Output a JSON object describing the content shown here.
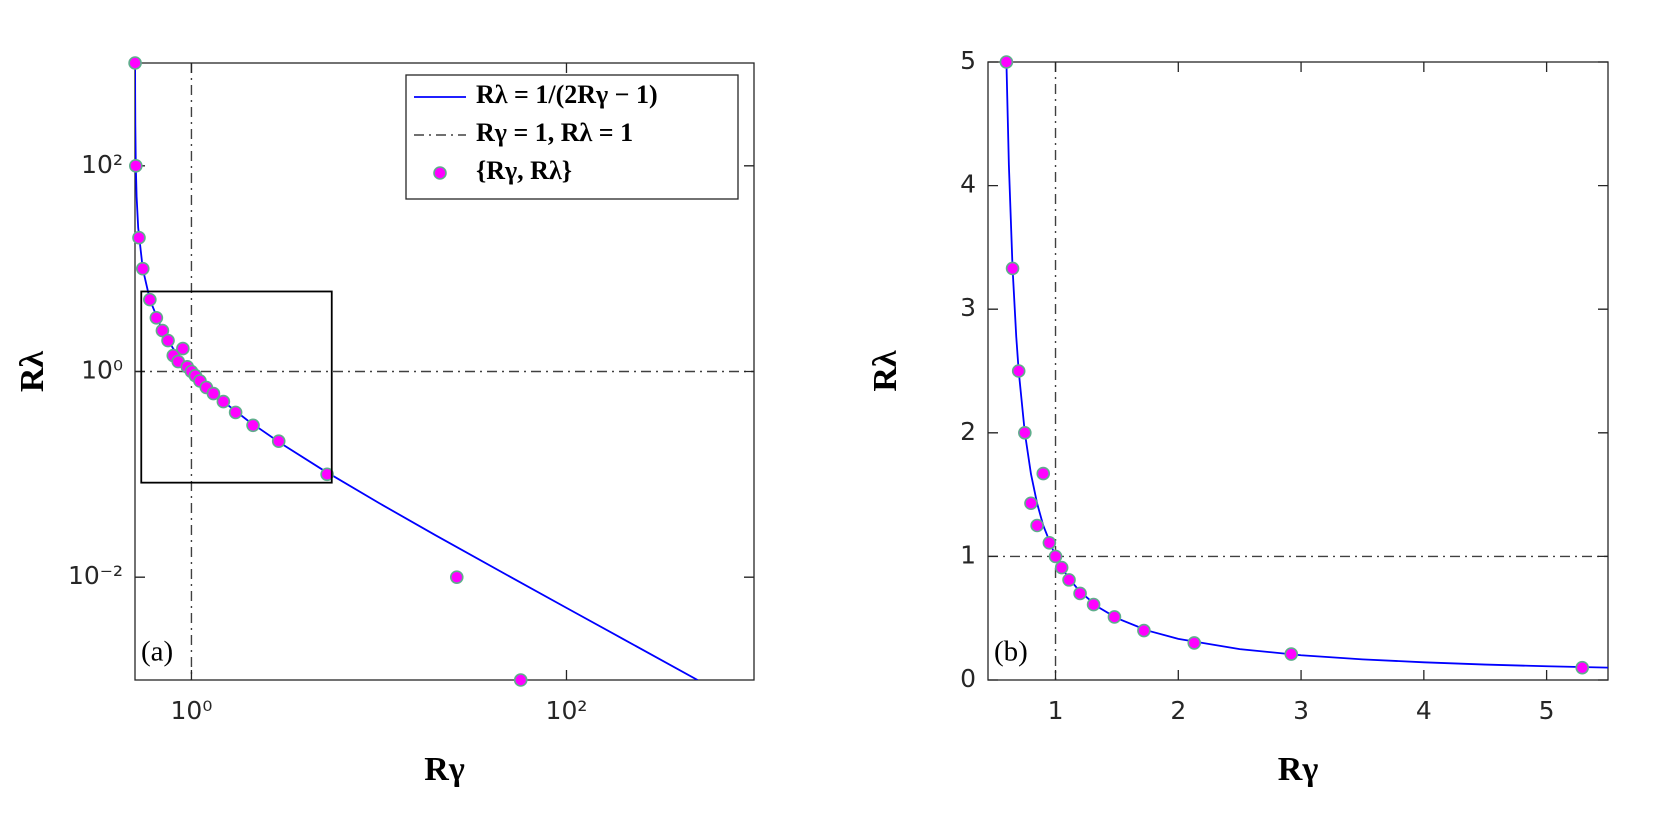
{
  "chart_data": [
    {
      "type": "scatter",
      "log_scale": true,
      "xlabel": "Rγ",
      "ylabel": "Rλ",
      "annotation": "(a)",
      "xlim": [
        0.5,
        1000
      ],
      "ylim": [
        0.001,
        1000
      ],
      "xticks": [
        {
          "value": 1,
          "label": "10⁰"
        },
        {
          "value": 100,
          "label": "10²"
        }
      ],
      "yticks": [
        {
          "value": 0.01,
          "label": "10⁻²"
        },
        {
          "value": 1,
          "label": "10⁰"
        },
        {
          "value": 100,
          "label": "10²"
        }
      ],
      "legend_corner": "upper right",
      "zoom_box": {
        "x": [
          0.54,
          5.6
        ],
        "y": [
          0.083,
          6
        ]
      },
      "series": [
        {
          "name": "Rλ = 1/(2Rγ − 1)",
          "kind": "line",
          "color": "#0000ff",
          "x": [
            0.5005,
            0.501,
            0.502,
            0.505,
            0.51,
            0.52,
            0.55,
            0.6,
            0.7,
            0.8,
            1,
            1.5,
            2,
            3,
            5,
            10,
            20,
            50,
            100,
            200,
            500
          ],
          "values": [
            1000,
            500,
            250,
            100,
            50,
            25,
            10,
            5,
            2.5,
            1.667,
            1,
            0.5,
            0.333,
            0.2,
            0.111,
            0.0526,
            0.0256,
            0.0101,
            0.00503,
            0.00251,
            0.001
          ]
        },
        {
          "name": "Rγ = 1, Rλ = 1",
          "kind": "reference",
          "color": "#404040",
          "x": [
            1
          ],
          "values": [
            1
          ]
        },
        {
          "name": "{Rγ, Rλ}",
          "kind": "points",
          "color": "#ff00ff",
          "edge_color": "#5fae8c",
          "x": [
            0.5005,
            0.505,
            0.525,
            0.55,
            0.6,
            0.65,
            0.7,
            0.75,
            0.8,
            0.85,
            0.9,
            0.95,
            1,
            1.05,
            1.11,
            1.2,
            1.31,
            1.48,
            1.72,
            2.13,
            2.92,
            5.29,
            26,
            57
          ],
          "values": [
            1000,
            100,
            20,
            10,
            5,
            3.33,
            2.5,
            2,
            1.43,
            1.25,
            1.67,
            1.11,
            1,
            0.91,
            0.81,
            0.7,
            0.61,
            0.51,
            0.4,
            0.3,
            0.21,
            0.1,
            0.01,
            0.001
          ]
        }
      ]
    },
    {
      "type": "scatter",
      "log_scale": false,
      "xlabel": "Rγ",
      "ylabel": "Rλ",
      "annotation": "(b)",
      "xlim": [
        0.45,
        5.5
      ],
      "ylim": [
        0,
        5
      ],
      "xticks": [
        1,
        2,
        3,
        4,
        5
      ],
      "yticks": [
        0,
        1,
        2,
        3,
        4,
        5
      ],
      "series": [
        {
          "kind": "line",
          "color": "#0000ff",
          "x": [
            0.6,
            0.62,
            0.65,
            0.68,
            0.7,
            0.75,
            0.8,
            0.85,
            0.9,
            1,
            1.1,
            1.2,
            1.35,
            1.5,
            1.75,
            2,
            2.5,
            3,
            3.5,
            4,
            4.5,
            5,
            5.5
          ],
          "values": [
            5,
            4.167,
            3.333,
            2.778,
            2.5,
            2,
            1.667,
            1.429,
            1.25,
            1,
            0.833,
            0.714,
            0.588,
            0.5,
            0.4,
            0.333,
            0.25,
            0.2,
            0.167,
            0.143,
            0.125,
            0.111,
            0.1
          ]
        },
        {
          "kind": "reference",
          "color": "#404040",
          "x": [
            1
          ],
          "values": [
            1
          ]
        },
        {
          "kind": "points",
          "color": "#ff00ff",
          "edge_color": "#5fae8c",
          "x": [
            0.6,
            0.65,
            0.7,
            0.75,
            0.8,
            0.85,
            0.9,
            0.95,
            1,
            1.05,
            1.11,
            1.2,
            1.31,
            1.48,
            1.72,
            2.13,
            2.92,
            5.29
          ],
          "values": [
            5,
            3.33,
            2.5,
            2,
            1.43,
            1.25,
            1.67,
            1.11,
            1,
            0.91,
            0.81,
            0.7,
            0.61,
            0.51,
            0.4,
            0.3,
            0.21,
            0.1
          ]
        }
      ]
    }
  ]
}
